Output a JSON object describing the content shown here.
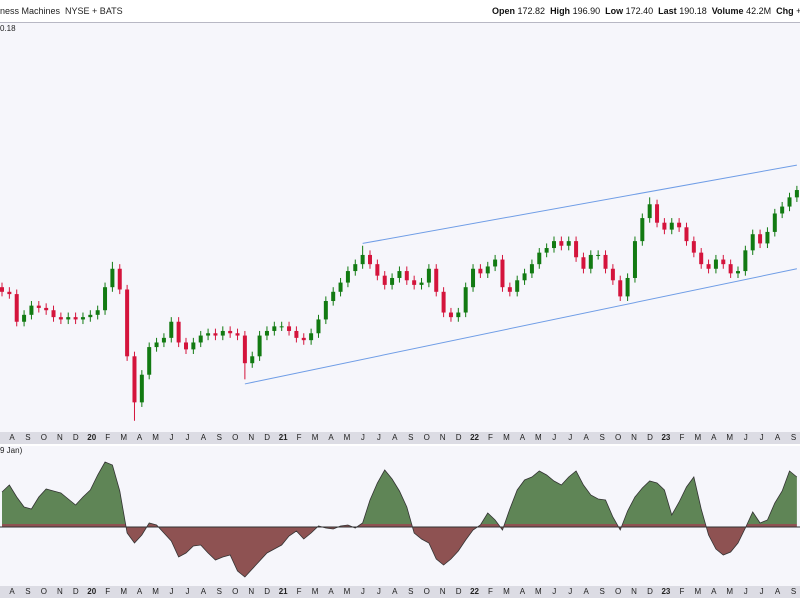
{
  "header": {
    "name": "ness Machines",
    "exchange": "NYSE + BATS",
    "quote": [
      {
        "label": "Open",
        "value": "172.82"
      },
      {
        "label": "High",
        "value": "196.90"
      },
      {
        "label": "Low",
        "value": "172.40"
      },
      {
        "label": "Last",
        "value": "190.18"
      },
      {
        "label": "Volume",
        "value": "42.2M"
      },
      {
        "label": "Chg",
        "value": "+"
      }
    ]
  },
  "chart_data": [
    {
      "type": "candlestick",
      "label": "0.18",
      "up_color": "#127a12",
      "down_color": "#d4143c",
      "ylim": [
        86,
        264
      ],
      "open": [
        148,
        146,
        145,
        133,
        136,
        140,
        139,
        138,
        135,
        134,
        135,
        134,
        135,
        136,
        138,
        148,
        156,
        147,
        118,
        98,
        110,
        122,
        124,
        126,
        133,
        124,
        121,
        124,
        127,
        128,
        127,
        129,
        128,
        127,
        115,
        118,
        127,
        129,
        131,
        131,
        129,
        126,
        125,
        128,
        134,
        142,
        146,
        150,
        155,
        158,
        162,
        158,
        153,
        149,
        152,
        155,
        151,
        149,
        150,
        156,
        146,
        137,
        135,
        137,
        148,
        156,
        154,
        157,
        160,
        148,
        146,
        151,
        154,
        158,
        163,
        165,
        168,
        166,
        168,
        161,
        156,
        162,
        162,
        156,
        151,
        144,
        152,
        168,
        178,
        184,
        176,
        173,
        176,
        174,
        168,
        163,
        158,
        156,
        160,
        158,
        154,
        155,
        164,
        171,
        167,
        172,
        180,
        183,
        187
      ],
      "high": [
        150,
        148,
        147,
        138,
        142,
        142,
        141,
        140,
        137,
        137,
        137,
        137,
        138,
        140,
        150,
        159,
        158,
        149,
        120,
        112,
        124,
        126,
        128,
        135,
        135,
        126,
        126,
        129,
        130,
        130,
        131,
        131,
        130,
        129,
        120,
        129,
        131,
        133,
        133,
        133,
        131,
        128,
        130,
        136,
        144,
        148,
        152,
        157,
        160,
        166,
        164,
        160,
        155,
        154,
        157,
        157,
        153,
        152,
        158,
        158,
        148,
        139,
        139,
        150,
        158,
        158,
        159,
        162,
        162,
        150,
        153,
        156,
        160,
        165,
        167,
        170,
        170,
        170,
        170,
        163,
        164,
        164,
        164,
        158,
        153,
        154,
        170,
        180,
        187,
        186,
        178,
        178,
        178,
        176,
        170,
        165,
        160,
        162,
        162,
        160,
        157,
        166,
        173,
        173,
        174,
        182,
        185,
        189,
        192
      ],
      "low": [
        144,
        143,
        131,
        131,
        134,
        137,
        136,
        133,
        132,
        132,
        132,
        132,
        133,
        134,
        136,
        146,
        145,
        116,
        90,
        96,
        108,
        120,
        122,
        124,
        122,
        119,
        119,
        122,
        125,
        125,
        125,
        126,
        125,
        108,
        113,
        116,
        125,
        127,
        129,
        127,
        124,
        123,
        123,
        126,
        132,
        140,
        144,
        148,
        153,
        156,
        156,
        151,
        147,
        147,
        150,
        149,
        147,
        147,
        148,
        144,
        135,
        133,
        133,
        135,
        146,
        152,
        152,
        155,
        146,
        144,
        144,
        149,
        152,
        156,
        161,
        163,
        164,
        164,
        159,
        154,
        154,
        160,
        154,
        149,
        142,
        142,
        150,
        166,
        176,
        174,
        171,
        171,
        172,
        166,
        161,
        156,
        154,
        154,
        156,
        152,
        152,
        153,
        162,
        165,
        165,
        170,
        178,
        181,
        185
      ],
      "close": [
        146,
        145,
        133,
        136,
        140,
        139,
        138,
        135,
        134,
        135,
        134,
        135,
        136,
        138,
        148,
        156,
        147,
        118,
        98,
        110,
        122,
        124,
        126,
        133,
        124,
        121,
        124,
        127,
        128,
        127,
        129,
        128,
        127,
        115,
        118,
        127,
        129,
        131,
        131,
        129,
        126,
        125,
        128,
        134,
        142,
        146,
        150,
        155,
        158,
        162,
        158,
        153,
        149,
        152,
        155,
        151,
        149,
        150,
        156,
        146,
        137,
        135,
        137,
        148,
        156,
        154,
        157,
        160,
        148,
        146,
        151,
        154,
        158,
        163,
        165,
        168,
        166,
        168,
        161,
        156,
        162,
        162,
        156,
        151,
        144,
        152,
        168,
        178,
        184,
        176,
        173,
        176,
        174,
        168,
        163,
        158,
        156,
        160,
        158,
        154,
        155,
        164,
        171,
        167,
        172,
        180,
        183,
        187,
        190.18
      ],
      "trendlines": [
        [
          [
            33,
            106
          ],
          [
            108,
            156
          ]
        ],
        [
          [
            49,
            167
          ],
          [
            108,
            201
          ]
        ]
      ],
      "trendline_color": "#6f9de6",
      "months": [
        "A",
        "S",
        "O",
        "N",
        "D",
        "20",
        "F",
        "M",
        "A",
        "M",
        "J",
        "J",
        "A",
        "S",
        "O",
        "N",
        "D",
        "21",
        "F",
        "M",
        "A",
        "M",
        "J",
        "J",
        "A",
        "S",
        "O",
        "N",
        "D",
        "22",
        "F",
        "M",
        "A",
        "M",
        "J",
        "J",
        "A",
        "S",
        "O",
        "N",
        "D",
        "23",
        "F",
        "M",
        "A",
        "M",
        "J",
        "J",
        "A",
        "S"
      ]
    },
    {
      "type": "area",
      "label": "9 Jan)",
      "pos_color": "#5f8556",
      "neg_color": "#8e5252",
      "ylim": [
        -6.3,
        7.2
      ],
      "values": [
        3.5,
        4.2,
        3.0,
        2.0,
        1.8,
        3.0,
        3.8,
        3.6,
        3.4,
        2.8,
        2.2,
        3.0,
        3.7,
        5.2,
        6.5,
        6.2,
        3.6,
        -0.6,
        -1.6,
        -0.8,
        0.4,
        0.2,
        -0.6,
        -1.4,
        -3.0,
        -2.6,
        -1.9,
        -1.8,
        -2.6,
        -3.3,
        -3.0,
        -2.8,
        -4.4,
        -5.0,
        -4.2,
        -3.4,
        -2.6,
        -2.2,
        -1.8,
        -0.9,
        -0.4,
        -1.2,
        -0.6,
        0.1,
        -0.1,
        -0.2,
        0.1,
        0.2,
        -0.1,
        0.4,
        2.7,
        4.4,
        5.7,
        4.8,
        3.6,
        2.0,
        -0.6,
        -1.2,
        -1.6,
        -3.2,
        -3.8,
        -3.2,
        -2.4,
        -1.3,
        -0.3,
        0.2,
        1.4,
        0.7,
        -0.3,
        1.8,
        3.7,
        4.7,
        5.0,
        5.6,
        5.2,
        4.6,
        4.2,
        5.0,
        5.6,
        4.2,
        3.2,
        2.8,
        2.7,
        1.0,
        -0.3,
        1.6,
        3.0,
        3.9,
        4.6,
        4.4,
        3.7,
        1.2,
        2.5,
        4.0,
        5.0,
        1.8,
        -0.8,
        -2.2,
        -2.8,
        -2.5,
        -1.6,
        -0.1,
        1.5,
        0.4,
        0.7,
        2.4,
        3.6,
        5.6,
        5.0
      ],
      "months": [
        "A",
        "S",
        "O",
        "N",
        "D",
        "20",
        "F",
        "M",
        "A",
        "M",
        "J",
        "J",
        "A",
        "S",
        "O",
        "N",
        "D",
        "21",
        "F",
        "M",
        "A",
        "M",
        "J",
        "J",
        "A",
        "S",
        "O",
        "N",
        "D",
        "22",
        "F",
        "M",
        "A",
        "M",
        "J",
        "J",
        "A",
        "S",
        "O",
        "N",
        "D",
        "23",
        "F",
        "M",
        "A",
        "M",
        "J",
        "J",
        "A",
        "S"
      ]
    }
  ]
}
